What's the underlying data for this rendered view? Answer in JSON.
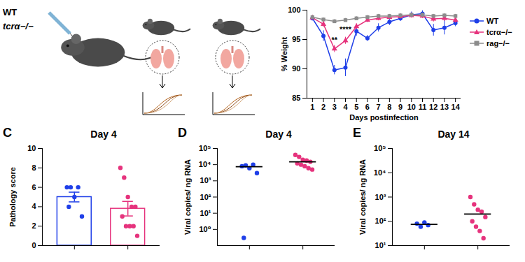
{
  "illustration": {
    "labels": [
      "WT",
      "tcrα−/−"
    ]
  },
  "chart_data": [
    {
      "type": "line",
      "x": [
        1,
        2,
        3,
        4,
        5,
        6,
        7,
        8,
        9,
        10,
        11,
        12,
        13,
        14
      ],
      "xlim": [
        0.5,
        14.5
      ],
      "xticks": [
        1,
        2,
        3,
        4,
        5,
        6,
        7,
        8,
        9,
        10,
        11,
        12,
        13,
        14
      ],
      "ylim": [
        85,
        100
      ],
      "yticks": [
        85,
        90,
        95,
        100
      ],
      "x_label": "Days postinfection",
      "y_label": "% Weight",
      "legend": "right",
      "series": [
        {
          "name": "WT",
          "color": "#1f3fe8",
          "marker": "circle",
          "values": [
            98.6,
            95.6,
            89.8,
            90.2,
            96.4,
            95.2,
            97.0,
            98.0,
            98.6,
            99.2,
            99.4,
            96.6,
            97.0,
            97.8
          ],
          "error": [
            0.4,
            0.9,
            0.8,
            1.5,
            0.8,
            0.5,
            0.7,
            0.6,
            0.5,
            0.5,
            0.5,
            1.0,
            1.2,
            0.6
          ]
        },
        {
          "name": "tcrα−/−",
          "color": "#e6337d",
          "marker": "triangle",
          "values": [
            98.7,
            97.6,
            93.4,
            94.8,
            97.2,
            98.3,
            98.6,
            98.8,
            98.9,
            99.1,
            99.0,
            98.5,
            98.6,
            98.3
          ],
          "error": [
            0.3,
            0.5,
            0.6,
            0.6,
            0.5,
            0.4,
            0.4,
            0.4,
            0.4,
            0.4,
            0.4,
            0.5,
            0.5,
            0.5
          ]
        },
        {
          "name": "rag−/−",
          "color": "#8c8c8c",
          "marker": "square",
          "values": [
            98.8,
            98.4,
            98.1,
            98.3,
            98.6,
            98.8,
            99.0,
            99.0,
            99.1,
            99.2,
            99.2,
            99.0,
            99.1,
            99.0
          ],
          "error": [
            0.3,
            0.3,
            0.3,
            0.3,
            0.3,
            0.3,
            0.3,
            0.3,
            0.3,
            0.3,
            0.3,
            0.3,
            0.3,
            0.3
          ]
        }
      ],
      "annotations": [
        {
          "x": 3,
          "y": 94.9,
          "text": "**"
        },
        {
          "x": 4,
          "y": 96.7,
          "text": "****"
        }
      ]
    },
    {
      "type": "bar",
      "panel": "C",
      "title": "Day 4",
      "y_label": "Pathology score",
      "categories": [
        null,
        null
      ],
      "values": [
        5.0,
        3.8
      ],
      "error": [
        0.5,
        0.75
      ],
      "colors": [
        "#1f3fe8",
        "#e6337d"
      ],
      "points": [
        [
          6,
          6,
          5,
          6,
          3,
          4
        ],
        [
          8,
          7,
          5,
          4,
          4,
          3,
          2,
          2,
          2,
          1
        ]
      ],
      "ylim": [
        0,
        10
      ],
      "yticks": [
        0,
        2,
        4,
        6,
        8,
        10
      ]
    },
    {
      "type": "scatter",
      "panel": "D",
      "title": "Day 4",
      "y_label": "Viral copies/ ng RNA",
      "log": "y",
      "categories": [
        null,
        null
      ],
      "colors": [
        "#1f3fe8",
        "#e6337d"
      ],
      "points": [
        [
          8000,
          9000,
          6000,
          10000,
          3000,
          0.3
        ],
        [
          40000,
          30000,
          20000,
          18000,
          15000,
          12000,
          10000,
          8000,
          6000,
          5000
        ]
      ],
      "means": [
        7500,
        15000
      ],
      "ylim": [
        0.1,
        100000
      ],
      "yticks": [
        {
          "value": 1,
          "label": "10⁰"
        },
        {
          "value": 10,
          "label": "10¹"
        },
        {
          "value": 100,
          "label": "10²"
        },
        {
          "value": 1000,
          "label": "10³"
        },
        {
          "value": 10000,
          "label": "10⁴"
        },
        {
          "value": 100000,
          "label": "10⁵"
        }
      ]
    },
    {
      "type": "scatter",
      "panel": "E",
      "title": "Day 14",
      "y_label": "Viral copies/ ng RNA",
      "log": "y",
      "categories": [
        null,
        null
      ],
      "colors": [
        "#1f3fe8",
        "#e6337d"
      ],
      "points": [
        [
          80,
          60,
          90,
          70
        ],
        [
          1000,
          500,
          300,
          250,
          150,
          100,
          60,
          40,
          20
        ]
      ],
      "means": [
        75,
        200
      ],
      "ylim": [
        10,
        100000
      ],
      "yticks": [
        {
          "value": 10,
          "label": "10¹"
        },
        {
          "value": 100,
          "label": "10²"
        },
        {
          "value": 1000,
          "label": "10³"
        },
        {
          "value": 10000,
          "label": "10⁴"
        },
        {
          "value": 100000,
          "label": "10⁵"
        }
      ]
    }
  ]
}
